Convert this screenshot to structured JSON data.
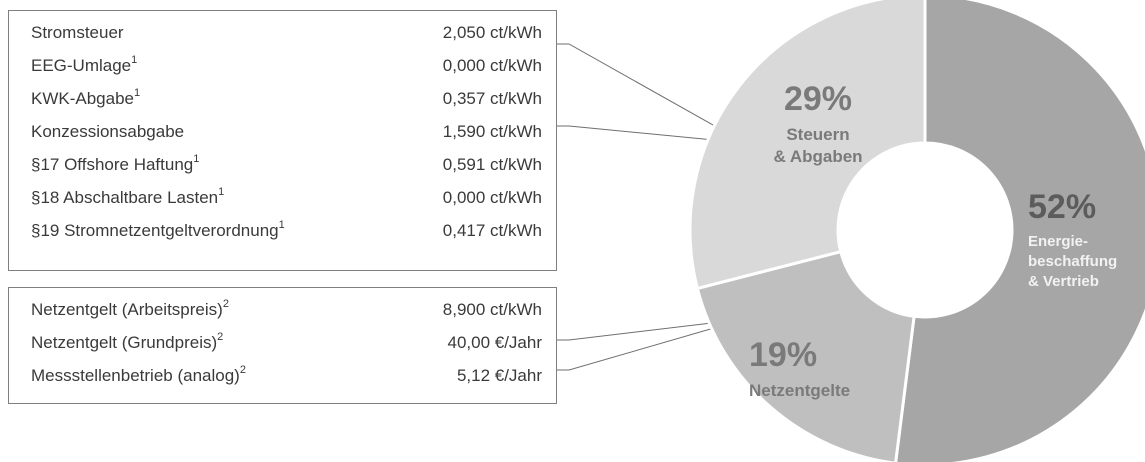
{
  "taxes_box": {
    "rows": [
      {
        "label": "Stromsteuer",
        "sup": "",
        "value": "2,050 ct/kWh"
      },
      {
        "label": "EEG-Umlage",
        "sup": "1",
        "value": "0,000 ct/kWh"
      },
      {
        "label": "KWK-Abgabe",
        "sup": "1",
        "value": "0,357 ct/kWh"
      },
      {
        "label": "Konzessionsabgabe",
        "sup": "",
        "value": "1,590 ct/kWh"
      },
      {
        "label": "§17 Offshore Haftung",
        "sup": "1",
        "value": "0,591 ct/kWh"
      },
      {
        "label": "§18 Abschaltbare Lasten",
        "sup": "1",
        "value": "0,000 ct/kWh"
      },
      {
        "label": "§19 Stromnetzentgeltverordnung",
        "sup": "1",
        "value": "0,417 ct/kWh"
      }
    ]
  },
  "grid_box": {
    "rows": [
      {
        "label": "Netzentgelt (Arbeitspreis)",
        "sup": "2",
        "value": "8,900 ct/kWh"
      },
      {
        "label": "Netzentgelt (Grundpreis)",
        "sup": "2",
        "value": "40,00 €/Jahr"
      },
      {
        "label": "Messstellenbetrieb (analog)",
        "sup": "2",
        "value": "5,12 €/Jahr"
      }
    ]
  },
  "chart_data": {
    "type": "pie",
    "donut": true,
    "slices": [
      {
        "name": "Energie-beschaffung & Vertrieb",
        "label_lines": [
          "Energie-",
          "beschaffung",
          "& Vertrieb"
        ],
        "pct_label": "52%",
        "value": 52,
        "color": "#a6a6a6"
      },
      {
        "name": "Netzentgelte",
        "label_lines": [
          "Netzentgelte"
        ],
        "pct_label": "19%",
        "value": 19,
        "color": "#bfbfbf"
      },
      {
        "name": "Steuern & Abgaben",
        "label_lines": [
          "Steuern",
          "& Abgaben"
        ],
        "pct_label": "29%",
        "value": 29,
        "color": "#d9d9d9"
      }
    ]
  },
  "colors": {
    "text": "#3a3a3a",
    "border": "#7f7f7f",
    "label_gray": "#7a7a7a",
    "label_white": "#f2f2f2"
  }
}
